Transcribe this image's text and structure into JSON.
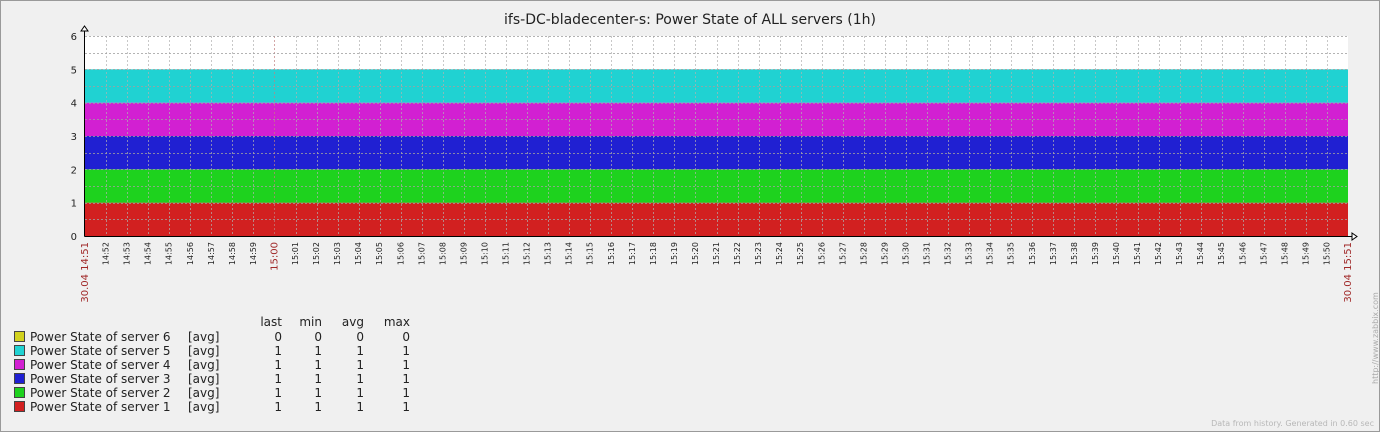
{
  "chart_data": {
    "type": "area",
    "title": "ifs-DC-bladecenter-s: Power State of ALL servers (1h)",
    "stacked": true,
    "ylim": [
      0,
      6
    ],
    "yticks": [
      0,
      1,
      2,
      3,
      4,
      5,
      6
    ],
    "x_start_label": "30.04 14:51",
    "x_end_label": "30.04 15:51",
    "hour_label": "15:00",
    "x_ticks": [
      "14:52",
      "14:53",
      "14:54",
      "14:55",
      "14:56",
      "14:57",
      "14:58",
      "14:59",
      "15:00",
      "15:01",
      "15:02",
      "15:03",
      "15:04",
      "15:05",
      "15:06",
      "15:07",
      "15:08",
      "15:09",
      "15:10",
      "15:11",
      "15:12",
      "15:13",
      "15:14",
      "15:15",
      "15:16",
      "15:17",
      "15:18",
      "15:19",
      "15:20",
      "15:21",
      "15:22",
      "15:23",
      "15:24",
      "15:25",
      "15:26",
      "15:27",
      "15:28",
      "15:29",
      "15:30",
      "15:31",
      "15:32",
      "15:33",
      "15:34",
      "15:35",
      "15:36",
      "15:37",
      "15:38",
      "15:39",
      "15:40",
      "15:41",
      "15:42",
      "15:43",
      "15:44",
      "15:45",
      "15:46",
      "15:47",
      "15:48",
      "15:49",
      "15:50"
    ],
    "series": [
      {
        "name": "Power State of server 1",
        "value": 1,
        "color": "#d22020"
      },
      {
        "name": "Power State of server 2",
        "value": 1,
        "color": "#1ed21e"
      },
      {
        "name": "Power State of server 3",
        "value": 1,
        "color": "#2020d2"
      },
      {
        "name": "Power State of server 4",
        "value": 1,
        "color": "#d220d2"
      },
      {
        "name": "Power State of server 5",
        "value": 1,
        "color": "#20d2d2"
      },
      {
        "name": "Power State of server 6",
        "value": 0,
        "color": "#d2d21e"
      }
    ],
    "grid": true
  },
  "legend": {
    "headers": {
      "last": "last",
      "min": "min",
      "avg": "avg",
      "max": "max"
    },
    "items": [
      {
        "name": "Power State of server 6",
        "fn": "[avg]",
        "last": "0",
        "min": "0",
        "avg": "0",
        "max": "0",
        "color": "#d2d21e"
      },
      {
        "name": "Power State of server 5",
        "fn": "[avg]",
        "last": "1",
        "min": "1",
        "avg": "1",
        "max": "1",
        "color": "#20d2d2"
      },
      {
        "name": "Power State of server 4",
        "fn": "[avg]",
        "last": "1",
        "min": "1",
        "avg": "1",
        "max": "1",
        "color": "#d220d2"
      },
      {
        "name": "Power State of server 3",
        "fn": "[avg]",
        "last": "1",
        "min": "1",
        "avg": "1",
        "max": "1",
        "color": "#2020d2"
      },
      {
        "name": "Power State of server 2",
        "fn": "[avg]",
        "last": "1",
        "min": "1",
        "avg": "1",
        "max": "1",
        "color": "#1ed21e"
      },
      {
        "name": "Power State of server 1",
        "fn": "[avg]",
        "last": "1",
        "min": "1",
        "avg": "1",
        "max": "1",
        "color": "#d22020"
      }
    ]
  },
  "side_text": "http://www.zabbix.com",
  "footer": "Data from history. Generated in 0.60 sec"
}
